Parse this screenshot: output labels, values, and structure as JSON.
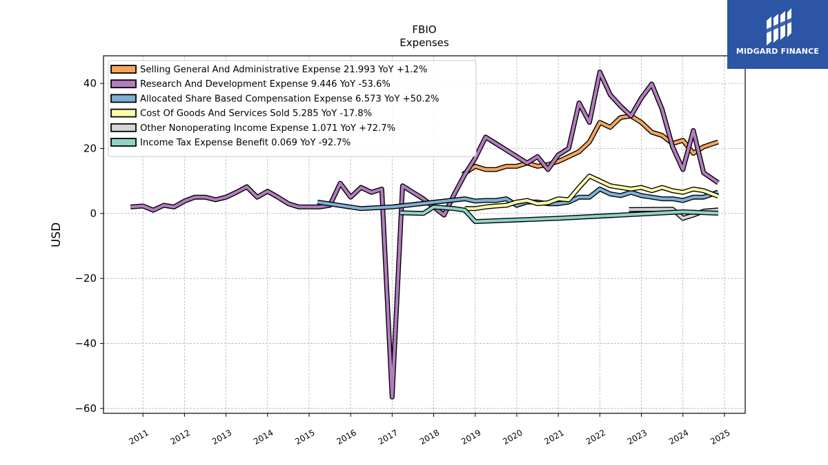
{
  "chart_data": {
    "type": "line",
    "title": "FBIO",
    "subtitle": "Expenses",
    "xlabel": "",
    "ylabel": "USD",
    "xlim": [
      2010.05,
      2025.5
    ],
    "ylim": [
      -61.5,
      48.5
    ],
    "yticks": [
      40,
      20,
      0,
      -20,
      -40,
      -60
    ],
    "ytick_labels": [
      "40",
      "20",
      "0",
      "−20",
      "−40",
      "−60"
    ],
    "xticks": [
      2011,
      2012,
      2013,
      2014,
      2015,
      2016,
      2017,
      2018,
      2019,
      2020,
      2021,
      2022,
      2023,
      2024,
      2025
    ],
    "grid": true,
    "legend_position": "top-left",
    "series": [
      {
        "name": "Selling General And Administrative Expense  21.993 YoY +1.2%",
        "color": "#f5a55c",
        "points": [
          [
            2018.7,
            12.0
          ],
          [
            2019.0,
            14.5
          ],
          [
            2019.25,
            13.5
          ],
          [
            2019.5,
            13.5
          ],
          [
            2019.75,
            14.5
          ],
          [
            2020.0,
            14.5
          ],
          [
            2020.25,
            15.5
          ],
          [
            2020.5,
            14.5
          ],
          [
            2020.75,
            15.0
          ],
          [
            2021.0,
            16.0
          ],
          [
            2021.25,
            17.5
          ],
          [
            2021.5,
            19.0
          ],
          [
            2021.75,
            22.0
          ],
          [
            2022.0,
            28.0
          ],
          [
            2022.25,
            26.5
          ],
          [
            2022.5,
            29.5
          ],
          [
            2022.75,
            30.0
          ],
          [
            2023.0,
            28.0
          ],
          [
            2023.25,
            25.0
          ],
          [
            2023.5,
            24.0
          ],
          [
            2023.75,
            21.5
          ],
          [
            2024.0,
            22.5
          ],
          [
            2024.25,
            18.5
          ],
          [
            2024.5,
            20.5
          ],
          [
            2024.85,
            21.993
          ]
        ]
      },
      {
        "name": "Research And Development Expense  9.446 YoY -53.6%",
        "color": "#b37cbf",
        "points": [
          [
            2010.7,
            2.0
          ],
          [
            2011.0,
            2.3
          ],
          [
            2011.25,
            1.0
          ],
          [
            2011.5,
            2.5
          ],
          [
            2011.75,
            2.0
          ],
          [
            2012.0,
            3.8
          ],
          [
            2012.25,
            5.0
          ],
          [
            2012.5,
            5.0
          ],
          [
            2012.75,
            4.2
          ],
          [
            2013.0,
            5.0
          ],
          [
            2013.25,
            6.5
          ],
          [
            2013.5,
            8.2
          ],
          [
            2013.75,
            5.0
          ],
          [
            2014.0,
            6.8
          ],
          [
            2014.25,
            5.0
          ],
          [
            2014.5,
            3.0
          ],
          [
            2014.75,
            2.0
          ],
          [
            2015.0,
            2.0
          ],
          [
            2015.25,
            2.0
          ],
          [
            2015.5,
            2.5
          ],
          [
            2015.75,
            9.3
          ],
          [
            2016.0,
            5.0
          ],
          [
            2016.25,
            8.0
          ],
          [
            2016.5,
            6.5
          ],
          [
            2016.75,
            7.5
          ],
          [
            2017.0,
            -56.5
          ],
          [
            2017.25,
            8.5
          ],
          [
            2017.5,
            6.5
          ],
          [
            2017.75,
            4.5
          ],
          [
            2018.0,
            2.0
          ],
          [
            2018.25,
            -0.5
          ],
          [
            2018.5,
            6.0
          ],
          [
            2018.75,
            12.0
          ],
          [
            2019.0,
            17.0
          ],
          [
            2019.25,
            23.5
          ],
          [
            2019.5,
            21.5
          ],
          [
            2019.75,
            19.5
          ],
          [
            2020.0,
            17.5
          ],
          [
            2020.25,
            15.5
          ],
          [
            2020.5,
            17.5
          ],
          [
            2020.75,
            13.5
          ],
          [
            2021.0,
            18.0
          ],
          [
            2021.25,
            20.0
          ],
          [
            2021.5,
            34.0
          ],
          [
            2021.75,
            28.0
          ],
          [
            2022.0,
            43.5
          ],
          [
            2022.25,
            36.5
          ],
          [
            2022.5,
            33.0
          ],
          [
            2022.75,
            30.0
          ],
          [
            2023.0,
            35.5
          ],
          [
            2023.25,
            39.8
          ],
          [
            2023.5,
            32.0
          ],
          [
            2023.75,
            20.5
          ],
          [
            2024.0,
            13.5
          ],
          [
            2024.25,
            25.5
          ],
          [
            2024.5,
            12.5
          ],
          [
            2024.85,
            9.446
          ]
        ]
      },
      {
        "name": "Allocated Share Based Compensation Expense  6.573 YoY +50.2%",
        "color": "#7eb0d5",
        "points": [
          [
            2015.2,
            3.5
          ],
          [
            2016.25,
            1.5
          ],
          [
            2017.0,
            2.0
          ],
          [
            2018.75,
            4.5
          ],
          [
            2019.0,
            3.8
          ],
          [
            2019.25,
            4.0
          ],
          [
            2019.5,
            4.0
          ],
          [
            2019.75,
            4.5
          ],
          [
            2020.0,
            2.5
          ],
          [
            2020.25,
            3.5
          ],
          [
            2020.5,
            3.5
          ],
          [
            2020.75,
            3.0
          ],
          [
            2021.0,
            3.0
          ],
          [
            2021.25,
            3.5
          ],
          [
            2021.5,
            5.0
          ],
          [
            2021.75,
            5.0
          ],
          [
            2022.0,
            7.5
          ],
          [
            2022.25,
            6.0
          ],
          [
            2022.5,
            5.5
          ],
          [
            2022.75,
            6.5
          ],
          [
            2023.0,
            5.5
          ],
          [
            2023.25,
            5.0
          ],
          [
            2023.5,
            4.5
          ],
          [
            2023.75,
            4.5
          ],
          [
            2024.0,
            4.0
          ],
          [
            2024.25,
            5.0
          ],
          [
            2024.5,
            5.0
          ],
          [
            2024.85,
            6.573
          ]
        ]
      },
      {
        "name": "Cost Of Goods And Services Sold  5.285 YoY -17.8%",
        "color": "#fdfeaa",
        "points": [
          [
            2018.75,
            1.5
          ],
          [
            2019.0,
            1.5
          ],
          [
            2019.25,
            2.0
          ],
          [
            2019.5,
            2.3
          ],
          [
            2019.75,
            2.5
          ],
          [
            2020.0,
            3.5
          ],
          [
            2020.25,
            4.0
          ],
          [
            2020.5,
            3.0
          ],
          [
            2020.75,
            3.3
          ],
          [
            2021.0,
            4.5
          ],
          [
            2021.25,
            4.2
          ],
          [
            2021.5,
            8.0
          ],
          [
            2021.75,
            11.5
          ],
          [
            2022.0,
            10.0
          ],
          [
            2022.25,
            8.5
          ],
          [
            2022.5,
            8.0
          ],
          [
            2022.75,
            7.5
          ],
          [
            2023.0,
            8.0
          ],
          [
            2023.25,
            7.0
          ],
          [
            2023.5,
            8.0
          ],
          [
            2023.75,
            7.0
          ],
          [
            2024.0,
            6.5
          ],
          [
            2024.25,
            7.5
          ],
          [
            2024.5,
            7.0
          ],
          [
            2024.85,
            5.285
          ]
        ]
      },
      {
        "name": "Other Nonoperating Income Expense  1.071 YoY +72.7%",
        "color": "#d5d5d5",
        "points": [
          [
            2022.7,
            1.2
          ],
          [
            2023.75,
            1.3
          ],
          [
            2024.0,
            -1.5
          ],
          [
            2024.25,
            -0.5
          ],
          [
            2024.5,
            0.7
          ],
          [
            2024.85,
            1.071
          ]
        ]
      },
      {
        "name": "Income Tax Expense Benefit  0.069 YoY -92.7%",
        "color": "#8dd3c7",
        "points": [
          [
            2017.2,
            0.2
          ],
          [
            2017.75,
            0.0
          ],
          [
            2018.0,
            2.0
          ],
          [
            2018.5,
            1.5
          ],
          [
            2018.75,
            1.0
          ],
          [
            2019.0,
            -2.5
          ],
          [
            2021.0,
            -1.5
          ],
          [
            2024.0,
            0.5
          ],
          [
            2024.85,
            0.069
          ]
        ]
      }
    ]
  },
  "logo": {
    "text": "MIDGARD FINANCE"
  }
}
